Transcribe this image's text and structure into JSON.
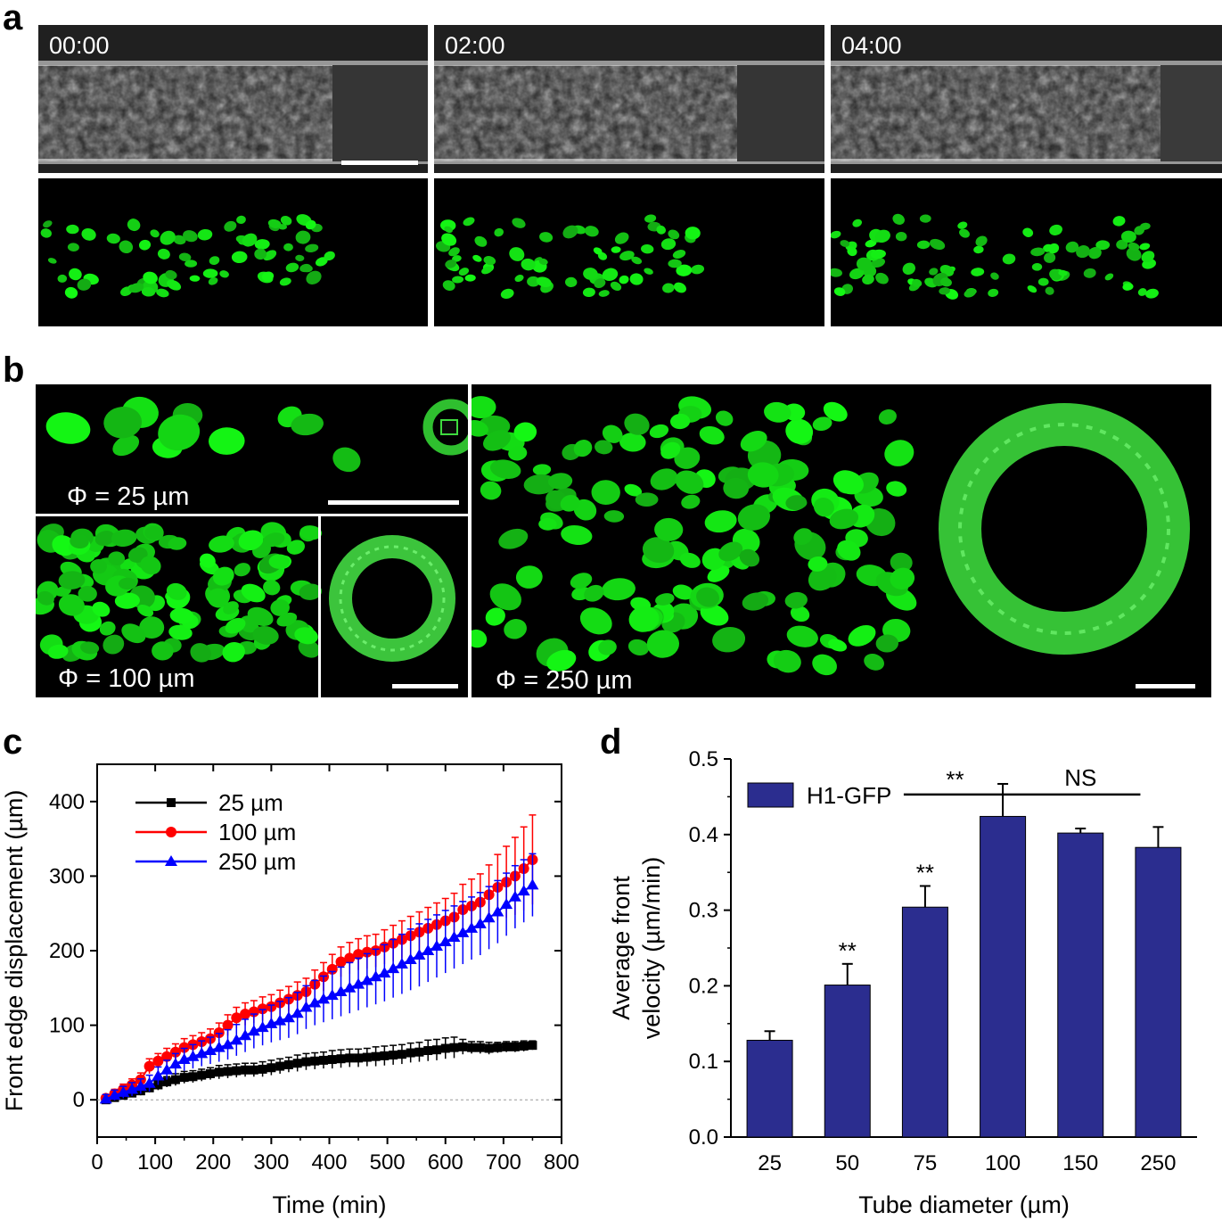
{
  "panel_a": {
    "letter": "a",
    "timestamps": [
      "00:00",
      "02:00",
      "04:00"
    ]
  },
  "panel_b": {
    "letter": "b",
    "labels": [
      "Φ = 25 µm",
      "Φ = 100 µm",
      "Φ = 250 µm"
    ]
  },
  "panel_c": {
    "letter": "c",
    "chart_data": {
      "type": "line",
      "xlabel": "Time (min)",
      "ylabel": "Front edge displacement (µm)",
      "xlim": [
        0,
        800
      ],
      "ylim": [
        -50,
        450
      ],
      "xticks": [
        "0",
        "100",
        "200",
        "300",
        "400",
        "500",
        "600",
        "700",
        "800"
      ],
      "yticks": [
        "0",
        "100",
        "200",
        "300",
        "400"
      ],
      "legend_position": "top-left",
      "series": [
        {
          "name": "25 µm",
          "color": "#000000",
          "marker": "square",
          "x": [
            15,
            30,
            45,
            60,
            75,
            90,
            105,
            120,
            135,
            150,
            165,
            180,
            195,
            210,
            225,
            240,
            255,
            270,
            285,
            300,
            315,
            330,
            345,
            360,
            375,
            390,
            405,
            420,
            435,
            450,
            465,
            480,
            495,
            510,
            525,
            540,
            555,
            570,
            585,
            600,
            615,
            630,
            645,
            660,
            675,
            690,
            705,
            720,
            735,
            750
          ],
          "y": [
            0,
            3,
            6,
            9,
            12,
            16,
            20,
            24,
            27,
            30,
            31,
            33,
            35,
            37,
            38,
            39,
            40,
            40,
            41,
            43,
            45,
            47,
            49,
            51,
            52,
            53,
            54,
            55,
            56,
            56,
            57,
            58,
            59,
            60,
            61,
            63,
            64,
            66,
            67,
            69,
            70,
            71,
            70,
            70,
            69,
            70,
            71,
            71,
            72,
            73
          ],
          "err": [
            4,
            4,
            5,
            5,
            6,
            6,
            7,
            7,
            8,
            8,
            8,
            8,
            8,
            9,
            9,
            9,
            9,
            9,
            10,
            10,
            10,
            10,
            11,
            11,
            11,
            11,
            12,
            12,
            12,
            12,
            12,
            13,
            13,
            13,
            13,
            13,
            13,
            14,
            14,
            14,
            14,
            10,
            8,
            8,
            8,
            7,
            7,
            7,
            7,
            6
          ]
        },
        {
          "name": "100 µm",
          "color": "#ff0000",
          "marker": "circle",
          "x": [
            15,
            30,
            45,
            60,
            75,
            90,
            105,
            120,
            135,
            150,
            165,
            180,
            195,
            210,
            225,
            240,
            255,
            270,
            285,
            300,
            315,
            330,
            345,
            360,
            375,
            390,
            405,
            420,
            435,
            450,
            465,
            480,
            495,
            510,
            525,
            540,
            555,
            570,
            585,
            600,
            615,
            630,
            645,
            660,
            675,
            690,
            705,
            720,
            735,
            750
          ],
          "y": [
            2,
            8,
            14,
            20,
            27,
            45,
            52,
            58,
            64,
            70,
            74,
            78,
            82,
            90,
            100,
            110,
            115,
            118,
            122,
            125,
            130,
            135,
            140,
            145,
            155,
            165,
            175,
            185,
            190,
            195,
            198,
            200,
            205,
            210,
            215,
            220,
            225,
            230,
            235,
            240,
            245,
            255,
            260,
            265,
            275,
            285,
            292,
            300,
            310,
            322
          ],
          "err": [
            5,
            6,
            7,
            8,
            9,
            10,
            10,
            11,
            11,
            12,
            12,
            12,
            13,
            13,
            14,
            14,
            15,
            15,
            16,
            16,
            17,
            17,
            18,
            18,
            19,
            19,
            20,
            20,
            21,
            21,
            22,
            22,
            23,
            24,
            25,
            26,
            27,
            28,
            29,
            30,
            32,
            34,
            36,
            38,
            40,
            44,
            48,
            52,
            56,
            60
          ]
        },
        {
          "name": "250 µm",
          "color": "#0000ff",
          "marker": "triangle",
          "x": [
            15,
            30,
            45,
            60,
            75,
            90,
            105,
            120,
            135,
            150,
            165,
            180,
            195,
            210,
            225,
            240,
            255,
            270,
            285,
            300,
            315,
            330,
            345,
            360,
            375,
            390,
            405,
            420,
            435,
            450,
            465,
            480,
            495,
            510,
            525,
            540,
            555,
            570,
            585,
            600,
            615,
            630,
            645,
            660,
            675,
            690,
            705,
            720,
            735,
            750
          ],
          "y": [
            1,
            6,
            10,
            14,
            18,
            22,
            32,
            40,
            48,
            54,
            58,
            62,
            66,
            70,
            74,
            80,
            86,
            92,
            97,
            102,
            106,
            110,
            116,
            124,
            130,
            135,
            140,
            145,
            150,
            155,
            160,
            165,
            170,
            176,
            182,
            188,
            194,
            200,
            206,
            212,
            218,
            224,
            230,
            236,
            244,
            252,
            262,
            272,
            280,
            288
          ],
          "err": [
            6,
            7,
            8,
            9,
            10,
            11,
            12,
            13,
            14,
            15,
            16,
            17,
            18,
            19,
            20,
            21,
            22,
            23,
            24,
            25,
            26,
            27,
            28,
            29,
            30,
            31,
            32,
            33,
            34,
            35,
            36,
            37,
            38,
            39,
            40,
            41,
            42,
            42,
            42,
            42,
            42,
            42,
            42,
            42,
            42,
            42,
            42,
            42,
            42,
            42
          ]
        }
      ]
    }
  },
  "panel_d": {
    "letter": "d",
    "chart_data": {
      "type": "bar",
      "categories": [
        "25",
        "50",
        "75",
        "100",
        "150",
        "250"
      ],
      "series": [
        {
          "name": "H1-GFP",
          "color": "#2b2d8f",
          "values": [
            0.128,
            0.201,
            0.304,
            0.424,
            0.402,
            0.383
          ],
          "err": [
            0.012,
            0.028,
            0.028,
            0.043,
            0.006,
            0.027
          ]
        }
      ],
      "xlabel": "Tube diameter (µm)",
      "ylabel_line1": "Average front",
      "ylabel_line2": "velocity (µm/min)",
      "ylim": [
        0,
        0.5
      ],
      "yticks": [
        "0.0",
        "0.1",
        "0.2",
        "0.3",
        "0.4",
        "0.5"
      ],
      "significance_stars": [
        "**",
        "**",
        "**"
      ],
      "significance_bracket_label": "**",
      "ns_label": "NS",
      "legend_position": "top-left"
    }
  }
}
